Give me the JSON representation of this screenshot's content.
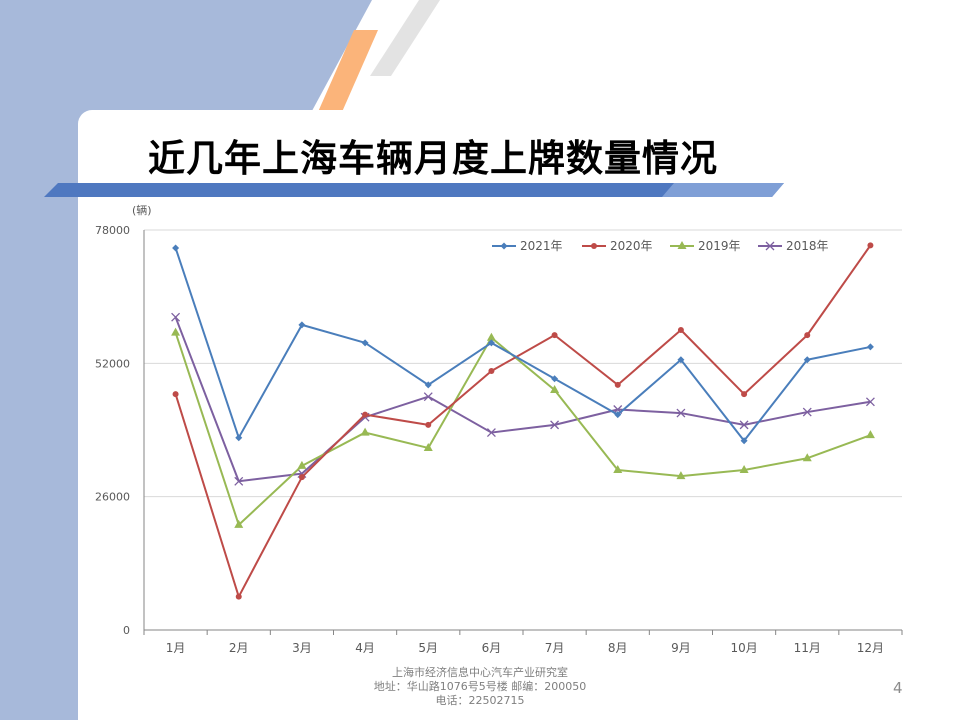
{
  "slide": {
    "title": "近几年上海车辆月度上牌数量情况",
    "page_number": "4",
    "footer": {
      "line1": "上海市经济信息中心汽车产业研究室",
      "line2": "地址：华山路1076号5号楼   邮编：200050",
      "line3": "电话：22502715"
    }
  },
  "colors": {
    "band": "#a7b9da",
    "title_bar": "#4f78c0",
    "accent_orange": "#fbb47a"
  },
  "chart_data": {
    "type": "line",
    "y_unit_label": "(辆)",
    "categories": [
      "1月",
      "2月",
      "3月",
      "4月",
      "5月",
      "6月",
      "7月",
      "8月",
      "9月",
      "10月",
      "11月",
      "12月"
    ],
    "y_ticks": [
      "0",
      "26000",
      "52000",
      "78000"
    ],
    "ylim": [
      0,
      78000
    ],
    "grid": true,
    "legend_position": "top-right",
    "series": [
      {
        "name": "2021年",
        "color": "#4a7ebb",
        "marker": "diamond",
        "values": [
          74500,
          37500,
          59500,
          56000,
          47800,
          56000,
          49000,
          42000,
          52700,
          36900,
          52700,
          55200
        ]
      },
      {
        "name": "2020年",
        "color": "#be4b48",
        "marker": "circle",
        "values": [
          46000,
          6500,
          29800,
          42000,
          40000,
          50500,
          57500,
          47800,
          58500,
          46000,
          57500,
          75000
        ]
      },
      {
        "name": "2019年",
        "color": "#98b954",
        "marker": "triangle",
        "values": [
          58000,
          20500,
          32000,
          38500,
          35500,
          57000,
          46800,
          31200,
          30000,
          31200,
          33500,
          38000
        ]
      },
      {
        "name": "2018年",
        "color": "#7d60a0",
        "marker": "x",
        "values": [
          61000,
          29000,
          30500,
          41500,
          45500,
          38500,
          40000,
          43000,
          42300,
          40000,
          42500,
          44500
        ]
      }
    ]
  }
}
